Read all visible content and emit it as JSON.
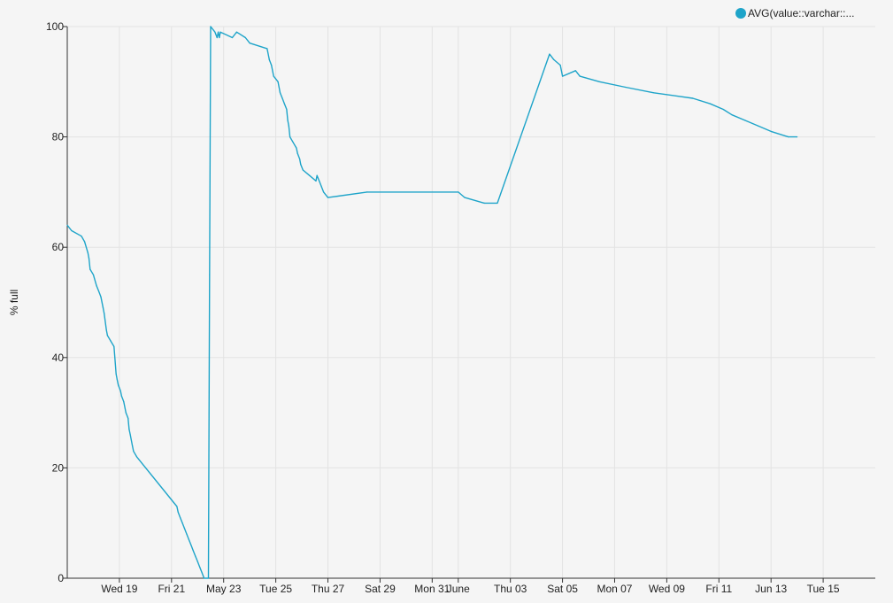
{
  "chart_data": {
    "type": "line",
    "title": "",
    "xlabel": "",
    "ylabel": "% full",
    "ylim": [
      0,
      100
    ],
    "xlim": [
      "2021-05-17T00:00",
      "2021-06-17T00:00"
    ],
    "grid": true,
    "legend_position": "top-right",
    "y_ticks": [
      0,
      20,
      40,
      60,
      80,
      100
    ],
    "x_ticks": [
      {
        "date": "2021-05-19",
        "label": "Wed 19"
      },
      {
        "date": "2021-05-21",
        "label": "Fri 21"
      },
      {
        "date": "2021-05-23",
        "label": "May 23"
      },
      {
        "date": "2021-05-25",
        "label": "Tue 25"
      },
      {
        "date": "2021-05-27",
        "label": "Thu 27"
      },
      {
        "date": "2021-05-29",
        "label": "Sat 29"
      },
      {
        "date": "2021-05-31",
        "label": "Mon 31"
      },
      {
        "date": "2021-06-01",
        "label": "June"
      },
      {
        "date": "2021-06-03",
        "label": "Thu 03"
      },
      {
        "date": "2021-06-05",
        "label": "Sat 05"
      },
      {
        "date": "2021-06-07",
        "label": "Mon 07"
      },
      {
        "date": "2021-06-09",
        "label": "Wed 09"
      },
      {
        "date": "2021-06-11",
        "label": "Fri 11"
      },
      {
        "date": "2021-06-13",
        "label": "Jun 13"
      },
      {
        "date": "2021-06-15",
        "label": "Tue 15"
      }
    ],
    "series": [
      {
        "name": "AVG(value::varchar::...",
        "color": "#1ea4c9",
        "points": [
          [
            "2021-05-17T00:00",
            64
          ],
          [
            "2021-05-17T04:00",
            63
          ],
          [
            "2021-05-17T13:00",
            62
          ],
          [
            "2021-05-17T16:00",
            61
          ],
          [
            "2021-05-17T19:00",
            59
          ],
          [
            "2021-05-17T20:00",
            58
          ],
          [
            "2021-05-17T21:00",
            56
          ],
          [
            "2021-05-18T00:00",
            55
          ],
          [
            "2021-05-18T03:00",
            53
          ],
          [
            "2021-05-18T05:00",
            52
          ],
          [
            "2021-05-18T07:00",
            51
          ],
          [
            "2021-05-18T09:00",
            49
          ],
          [
            "2021-05-18T10:00",
            48
          ],
          [
            "2021-05-18T12:00",
            45
          ],
          [
            "2021-05-18T13:00",
            44
          ],
          [
            "2021-05-18T16:00",
            43
          ],
          [
            "2021-05-18T19:00",
            42
          ],
          [
            "2021-05-18T21:00",
            37
          ],
          [
            "2021-05-18T22:00",
            36
          ],
          [
            "2021-05-18T23:00",
            35
          ],
          [
            "2021-05-19T01:00",
            34
          ],
          [
            "2021-05-19T02:00",
            33
          ],
          [
            "2021-05-19T04:00",
            32
          ],
          [
            "2021-05-19T06:00",
            30
          ],
          [
            "2021-05-19T08:00",
            29
          ],
          [
            "2021-05-19T09:00",
            27
          ],
          [
            "2021-05-19T10:00",
            26
          ],
          [
            "2021-05-19T12:00",
            24
          ],
          [
            "2021-05-19T13:00",
            23
          ],
          [
            "2021-05-19T16:00",
            22
          ],
          [
            "2021-05-21T05:00",
            13
          ],
          [
            "2021-05-21T06:00",
            12
          ],
          [
            "2021-05-21T08:00",
            11
          ],
          [
            "2021-05-21T10:00",
            10
          ],
          [
            "2021-05-21T12:00",
            9
          ],
          [
            "2021-05-21T14:00",
            8
          ],
          [
            "2021-05-21T16:00",
            7
          ],
          [
            "2021-05-21T18:00",
            6
          ],
          [
            "2021-05-21T20:00",
            5
          ],
          [
            "2021-05-21T22:00",
            4
          ],
          [
            "2021-05-22T00:00",
            3
          ],
          [
            "2021-05-22T02:00",
            2
          ],
          [
            "2021-05-22T04:00",
            1
          ],
          [
            "2021-05-22T06:00",
            0
          ],
          [
            "2021-05-22T10:00",
            0
          ],
          [
            "2021-05-22T11:00",
            55
          ],
          [
            "2021-05-22T12:00",
            100
          ],
          [
            "2021-05-22T16:00",
            99
          ],
          [
            "2021-05-22T18:00",
            98
          ],
          [
            "2021-05-22T19:00",
            99
          ],
          [
            "2021-05-22T20:00",
            98
          ],
          [
            "2021-05-22T21:00",
            99
          ],
          [
            "2021-05-23T08:00",
            98
          ],
          [
            "2021-05-23T12:00",
            99
          ],
          [
            "2021-05-23T20:00",
            98
          ],
          [
            "2021-05-24T00:00",
            97
          ],
          [
            "2021-05-24T16:00",
            96
          ],
          [
            "2021-05-24T18:00",
            94
          ],
          [
            "2021-05-24T20:00",
            93
          ],
          [
            "2021-05-24T22:00",
            91
          ],
          [
            "2021-05-25T02:00",
            90
          ],
          [
            "2021-05-25T04:00",
            88
          ],
          [
            "2021-05-25T06:00",
            87
          ],
          [
            "2021-05-25T08:00",
            86
          ],
          [
            "2021-05-25T10:00",
            85
          ],
          [
            "2021-05-25T11:00",
            83
          ],
          [
            "2021-05-25T12:00",
            82
          ],
          [
            "2021-05-25T13:00",
            80
          ],
          [
            "2021-05-25T16:00",
            79
          ],
          [
            "2021-05-25T19:00",
            78
          ],
          [
            "2021-05-25T20:00",
            77
          ],
          [
            "2021-05-25T22:00",
            76
          ],
          [
            "2021-05-25T23:00",
            75
          ],
          [
            "2021-05-26T01:00",
            74
          ],
          [
            "2021-05-26T07:00",
            73
          ],
          [
            "2021-05-26T13:00",
            72
          ],
          [
            "2021-05-26T14:00",
            73
          ],
          [
            "2021-05-26T16:00",
            72
          ],
          [
            "2021-05-26T18:00",
            71
          ],
          [
            "2021-05-26T20:00",
            70
          ],
          [
            "2021-05-27T00:00",
            69
          ],
          [
            "2021-05-28T12:00",
            70
          ],
          [
            "2021-06-01T00:00",
            70
          ],
          [
            "2021-06-01T06:00",
            69
          ],
          [
            "2021-06-02T00:00",
            68
          ],
          [
            "2021-06-02T12:00",
            68
          ],
          [
            "2021-06-04T12:00",
            95
          ],
          [
            "2021-06-04T16:00",
            94
          ],
          [
            "2021-06-04T22:00",
            93
          ],
          [
            "2021-06-05T00:00",
            91
          ],
          [
            "2021-06-05T12:00",
            92
          ],
          [
            "2021-06-05T16:00",
            91
          ],
          [
            "2021-06-06T10:00",
            90
          ],
          [
            "2021-06-07T10:00",
            89
          ],
          [
            "2021-06-08T12:00",
            88
          ],
          [
            "2021-06-10T00:00",
            87
          ],
          [
            "2021-06-10T16:00",
            86
          ],
          [
            "2021-06-11T04:00",
            85
          ],
          [
            "2021-06-11T12:00",
            84
          ],
          [
            "2021-06-12T00:00",
            83
          ],
          [
            "2021-06-12T12:00",
            82
          ],
          [
            "2021-06-13T00:00",
            81
          ],
          [
            "2021-06-13T16:00",
            80
          ],
          [
            "2021-06-14T00:00",
            80
          ]
        ]
      }
    ]
  }
}
